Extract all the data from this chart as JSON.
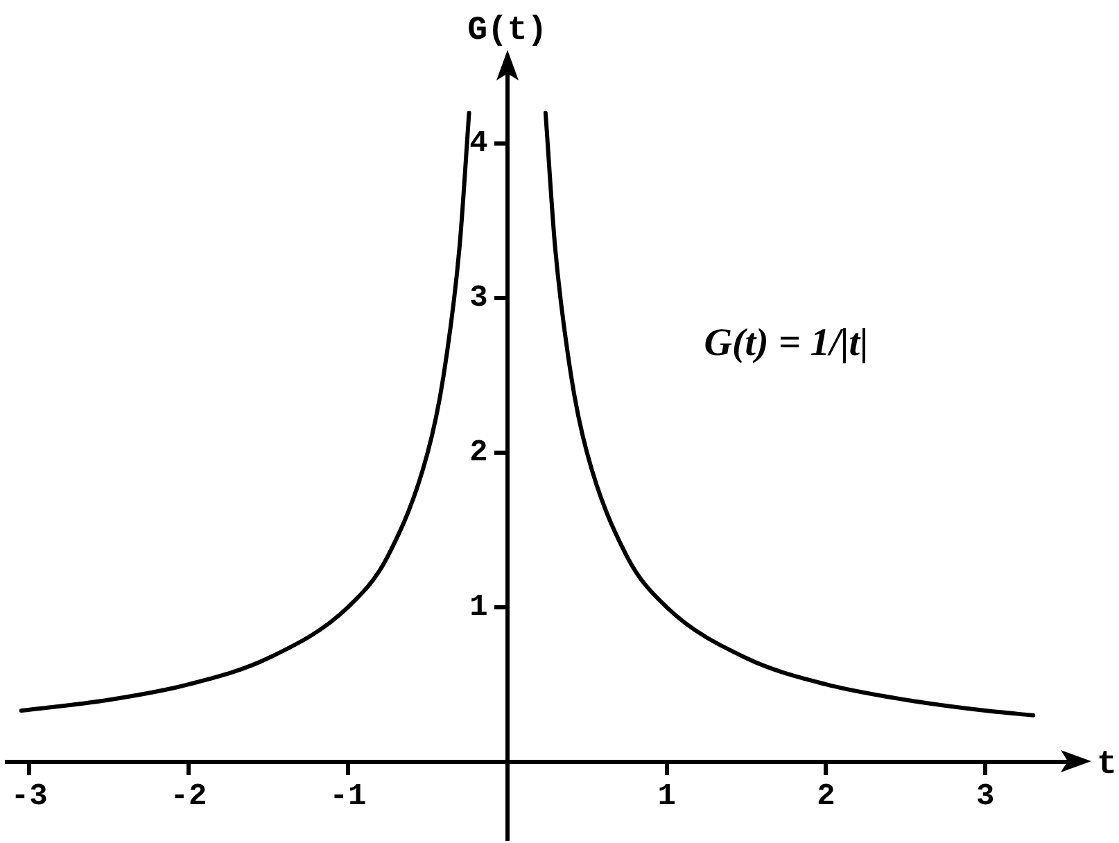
{
  "chart_data": {
    "type": "line",
    "xlabel": "t",
    "ylabel": "G(t)",
    "annotations": [
      "G(t) = 1/|t|"
    ],
    "x": [
      -3.05,
      -2.5,
      -2,
      -1.5,
      -1,
      -0.75,
      -0.5,
      -0.4,
      -0.3,
      -0.24,
      0,
      0.24,
      0.3,
      0.4,
      0.5,
      0.75,
      1,
      1.5,
      2,
      2.5,
      3,
      3.3
    ],
    "series": [
      {
        "color": "#000000",
        "values": [
          0.33,
          0.4,
          0.5,
          0.67,
          1,
          1.33,
          2,
          2.5,
          3.33,
          4.2,
          null,
          4.2,
          3.33,
          2.5,
          2,
          1.33,
          1,
          0.67,
          0.5,
          0.4,
          0.33,
          0.3
        ]
      }
    ],
    "xlim": [
      -3.14,
      3.56
    ],
    "ylim": [
      -0.5,
      4.5
    ],
    "xticks": [
      {
        "value": -3,
        "label": "-3"
      },
      {
        "value": -2,
        "label": "-2"
      },
      {
        "value": -1,
        "label": "-1"
      },
      {
        "value": 1,
        "label": "1"
      },
      {
        "value": 2,
        "label": "2"
      },
      {
        "value": 3,
        "label": "3"
      }
    ],
    "yticks": [
      1,
      2,
      3,
      4
    ],
    "grid": false,
    "legend": false,
    "marker": "none",
    "line_style": "solid"
  }
}
